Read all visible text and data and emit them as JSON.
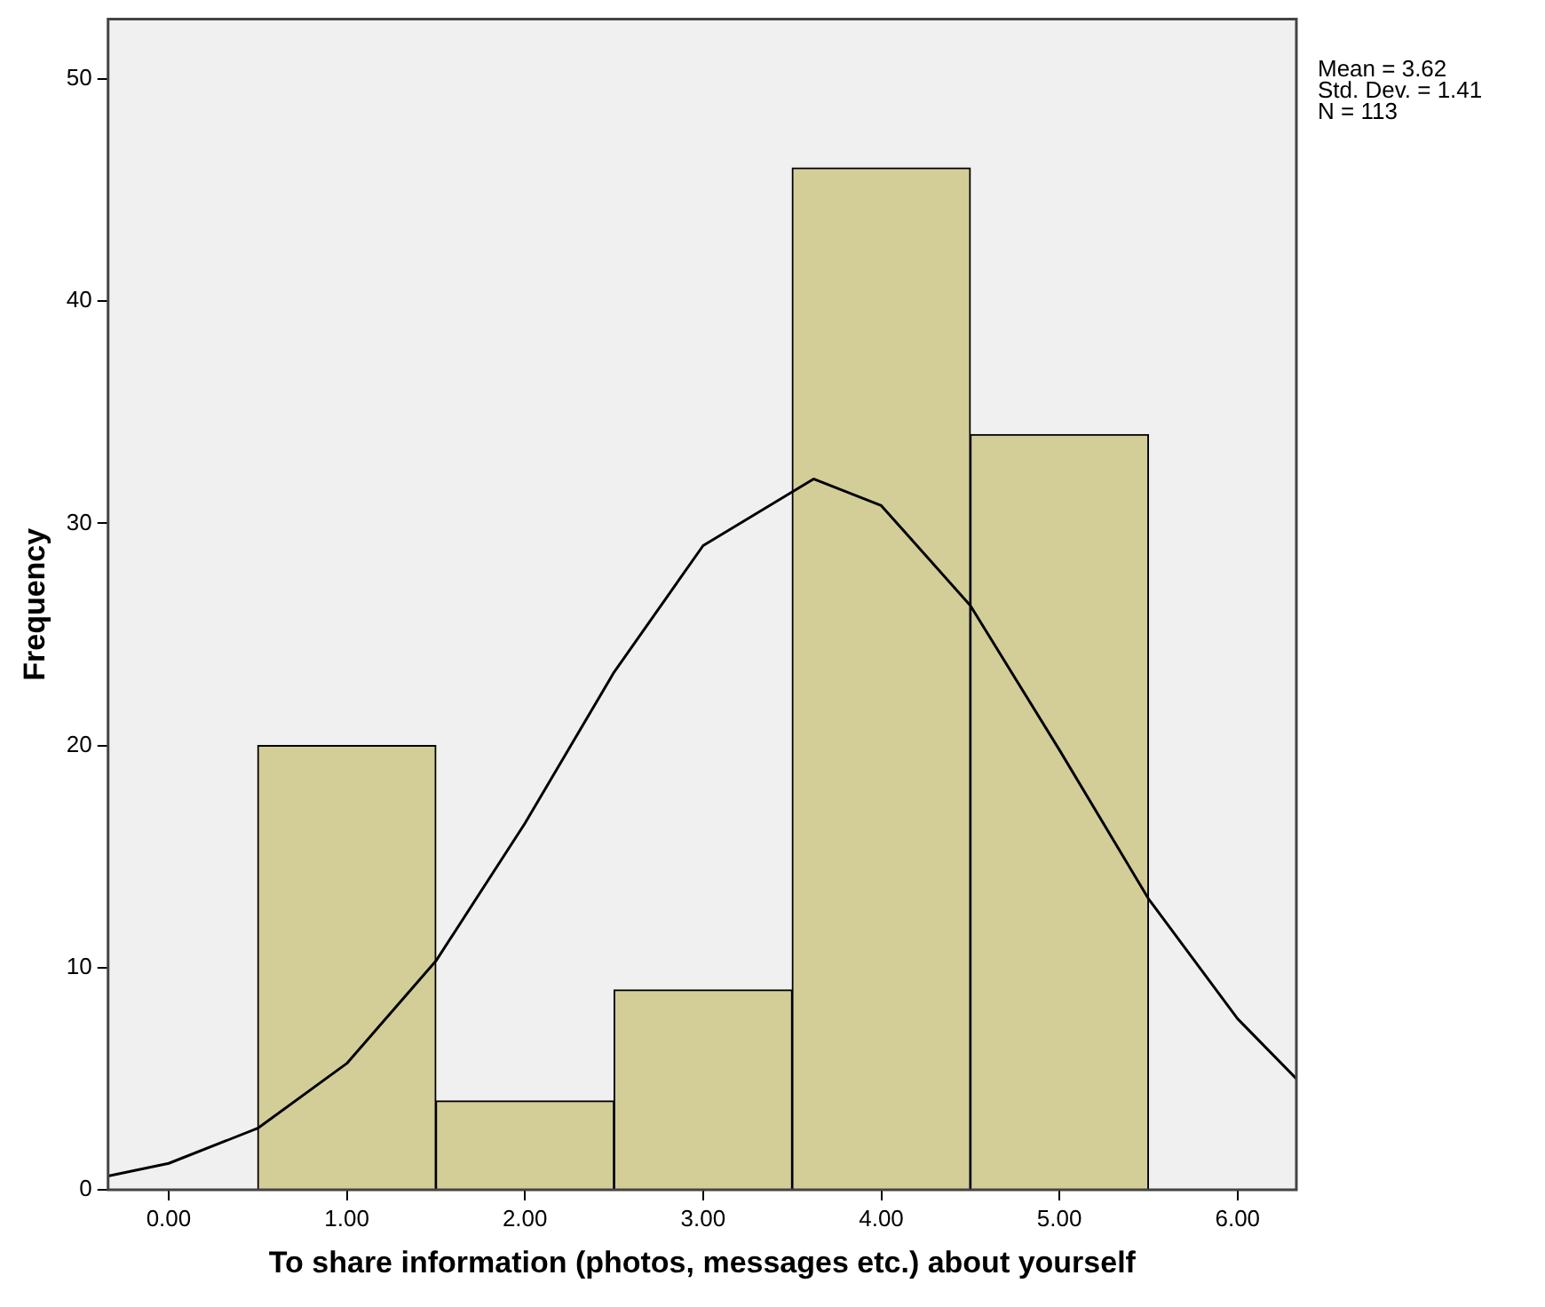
{
  "chart_data": {
    "type": "histogram",
    "xlabel": "To share information (photos, messages etc.) about yourself",
    "ylabel": "Frequency",
    "bins": [
      0.5,
      1.5,
      2.5,
      3.5,
      4.5,
      5.5
    ],
    "values": [
      20,
      4,
      9,
      46,
      34
    ],
    "color": "#d3ce98",
    "series": [
      {
        "type": "line",
        "color": "#000000",
        "x": [
          -0.34,
          0,
          0.5,
          1,
          1.5,
          2,
          2.5,
          3,
          3.62,
          4,
          4.5,
          5,
          5.5,
          6,
          6.33
        ],
        "values": [
          0.62,
          1.19,
          2.77,
          5.69,
          10.3,
          16.5,
          23.3,
          29.0,
          32.0,
          30.8,
          26.3,
          19.8,
          13.1,
          7.7,
          5.0
        ]
      }
    ],
    "xlim": [
      -0.34,
      6.33
    ],
    "ylim": [
      0,
      52.7
    ],
    "xticks": [
      {
        "value": 0,
        "label": "0.00"
      },
      {
        "value": 1,
        "label": "1.00"
      },
      {
        "value": 2,
        "label": "2.00"
      },
      {
        "value": 3,
        "label": "3.00"
      },
      {
        "value": 4,
        "label": "4.00"
      },
      {
        "value": 5,
        "label": "5.00"
      },
      {
        "value": 6,
        "label": "6.00"
      }
    ],
    "yticks": [
      0,
      10,
      20,
      30,
      40,
      50
    ],
    "annotations": [
      "Mean = 3.62",
      "Std. Dev. = 1.41",
      "N = 113"
    ],
    "grid": false,
    "legend": false
  }
}
